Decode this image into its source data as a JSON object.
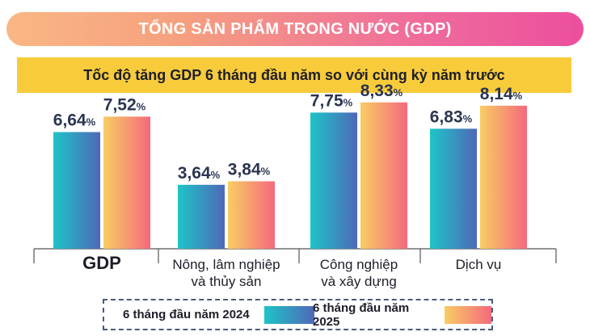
{
  "title": "TỔNG SẢN PHẨM TRONG NƯỚC (GDP)",
  "subtitle": "Tốc độ tăng GDP 6 tháng đầu năm so với cùng kỳ năm trước",
  "colors": {
    "series_2024_gradient": [
      "#1ec4c8",
      "#4f68b8"
    ],
    "series_2025_gradient": [
      "#f8cd63",
      "#f4697d"
    ],
    "title_gradient": [
      "#f9b784",
      "#ec4f9d"
    ],
    "subtitle_bg": "#f8cb3b",
    "value_label": "#2b3553"
  },
  "legend": {
    "items": [
      {
        "label": "6 tháng đầu năm 2024"
      },
      {
        "label": "6 tháng đầu năm 2025"
      }
    ]
  },
  "chart_data": {
    "type": "bar",
    "categories": [
      [
        "GDP"
      ],
      [
        "Nông, lâm nghiệp",
        "và thủy sản"
      ],
      [
        "Công nghiệp",
        "và xây dựng"
      ],
      [
        "Dịch vụ"
      ]
    ],
    "series": [
      {
        "name": "6 tháng đầu năm 2024",
        "values": [
          6.64,
          3.64,
          7.75,
          6.83
        ],
        "labels": [
          "6,64",
          "3,64",
          "7,75",
          "6,83"
        ]
      },
      {
        "name": "6 tháng đầu năm 2025",
        "values": [
          7.52,
          3.84,
          8.33,
          8.14
        ],
        "labels": [
          "7,52",
          "3,84",
          "8,33",
          "8,14"
        ]
      }
    ],
    "unit": "%",
    "ylim": [
      0,
      9.1
    ],
    "grid": false,
    "legend_position": "bottom"
  }
}
